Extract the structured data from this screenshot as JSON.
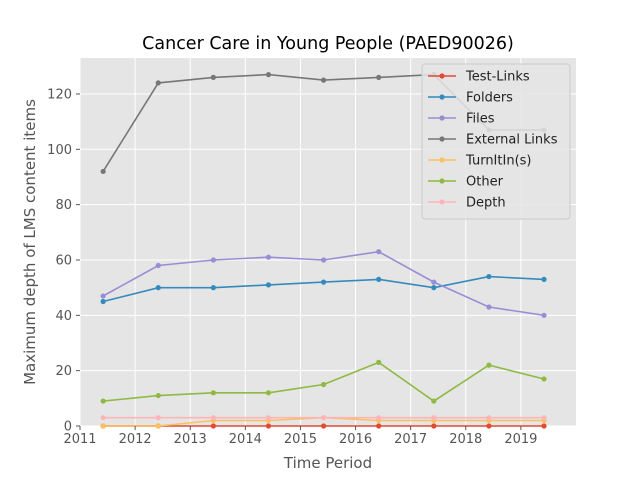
{
  "chart_data": {
    "type": "line",
    "title": "Cancer Care in Young People (PAED90026)",
    "xlabel": "Time Period",
    "ylabel": "Maximum depth of LMS content items",
    "xlim": [
      2011,
      2020
    ],
    "ylim": [
      0,
      133
    ],
    "xticks": [
      "2011",
      "2012",
      "2013",
      "2014",
      "2015",
      "2016",
      "2017",
      "2018",
      "2019"
    ],
    "yticks": [
      "0",
      "20",
      "40",
      "60",
      "80",
      "100",
      "120"
    ],
    "x": [
      2011.42,
      2012.42,
      2013.42,
      2014.42,
      2015.42,
      2016.42,
      2017.42,
      2018.42,
      2019.42
    ],
    "grid": true,
    "legend_position": "top-right",
    "series": [
      {
        "name": "Test-Links",
        "color": "#E24A33",
        "values": [
          0,
          0,
          0,
          0,
          0,
          0,
          0,
          0,
          0
        ]
      },
      {
        "name": "Folders",
        "color": "#348ABD",
        "values": [
          45,
          50,
          50,
          51,
          52,
          53,
          50,
          54,
          53
        ]
      },
      {
        "name": "Files",
        "color": "#988ED5",
        "values": [
          47,
          58,
          60,
          61,
          60,
          63,
          52,
          43,
          40
        ]
      },
      {
        "name": "External Links",
        "color": "#777777",
        "values": [
          92,
          124,
          126,
          127,
          125,
          126,
          127,
          107,
          107
        ]
      },
      {
        "name": "TurnItIn(s)",
        "color": "#FBC15E",
        "values": [
          0,
          0,
          2,
          2,
          3,
          2,
          2,
          2,
          2
        ]
      },
      {
        "name": "Other",
        "color": "#8EBA42",
        "values": [
          9,
          11,
          12,
          12,
          15,
          23,
          9,
          22,
          17
        ]
      },
      {
        "name": "Depth",
        "color": "#FFB5B8",
        "values": [
          3,
          3,
          3,
          3,
          3,
          3,
          3,
          3,
          3
        ]
      }
    ]
  }
}
